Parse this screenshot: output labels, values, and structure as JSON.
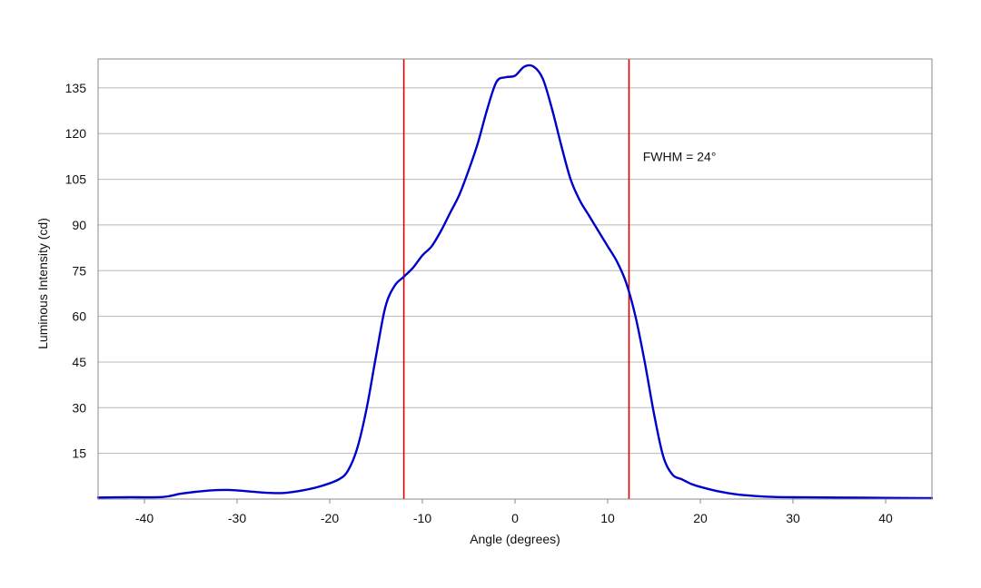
{
  "chart_data": {
    "type": "line",
    "title": "",
    "xlabel": "Angle (degrees)",
    "ylabel": "Luminous Intensity (cd)",
    "xlim": [
      -45,
      45
    ],
    "ylim": [
      0,
      144.5
    ],
    "xticks": [
      -40,
      -30,
      -20,
      -10,
      0,
      10,
      20,
      30,
      40
    ],
    "yticks": [
      15,
      30,
      45,
      60,
      75,
      90,
      105,
      120,
      135
    ],
    "grid": "horizontal",
    "legend": "none",
    "series": [
      {
        "color": "#0000cc",
        "x": [
          -45,
          -42,
          -38,
          -36,
          -33,
          -31,
          -29,
          -27,
          -25,
          -23,
          -21,
          -19,
          -18,
          -17,
          -16,
          -15,
          -14,
          -13,
          -12,
          -11,
          -10,
          -9,
          -8,
          -7,
          -6,
          -5,
          -4,
          -3,
          -2,
          -1,
          0,
          1,
          2,
          3,
          4,
          5,
          6,
          7,
          8,
          9,
          10,
          11,
          12,
          13,
          14,
          15,
          16,
          17,
          18,
          19,
          20,
          22,
          24,
          26,
          28,
          30,
          35,
          40,
          45
        ],
        "y": [
          0.5,
          0.6,
          0.7,
          1.8,
          2.8,
          3.0,
          2.6,
          2.1,
          2.0,
          2.8,
          4.2,
          6.5,
          9.5,
          17,
          30,
          47,
          63,
          70,
          73,
          76,
          80,
          83,
          88,
          94,
          100,
          108,
          117,
          128,
          137,
          138.5,
          139,
          142,
          142,
          138,
          128,
          116,
          105,
          98,
          93,
          88,
          83,
          78,
          71,
          60,
          45,
          28,
          14,
          8,
          6.5,
          5.0,
          4.0,
          2.5,
          1.5,
          1.0,
          0.7,
          0.6,
          0.5,
          0.4,
          0.3
        ]
      }
    ],
    "vlines": [
      {
        "x": -12,
        "color": "#dd0000"
      },
      {
        "x": 12.3,
        "color": "#dd0000"
      }
    ],
    "annotation": {
      "text": "FWHM = 24°",
      "x": 13.8,
      "y": 111
    }
  }
}
